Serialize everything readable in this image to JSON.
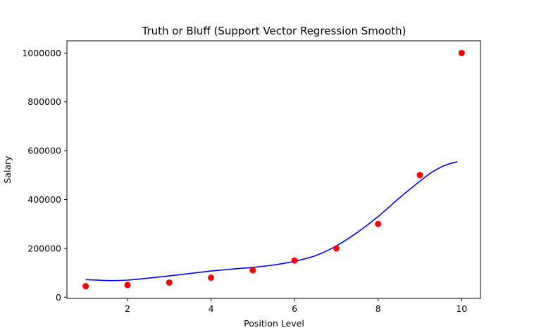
{
  "chart_data": {
    "type": "scatter",
    "title": "Truth or Bluff (Support Vector Regression Smooth)",
    "xlabel": "Position Level",
    "ylabel": "Salary",
    "xlim": [
      0.55,
      10.45
    ],
    "ylim": [
      -5000,
      1050000
    ],
    "xticks": [
      2,
      4,
      6,
      8,
      10
    ],
    "yticks": [
      0,
      200000,
      400000,
      600000,
      800000,
      1000000
    ],
    "grid": false,
    "legend": "none",
    "series": [
      {
        "kind": "scatter",
        "color": "#ff0000",
        "x": [
          1,
          2,
          3,
          4,
          5,
          6,
          7,
          8,
          9,
          10
        ],
        "y": [
          45000,
          50000,
          60000,
          80000,
          110000,
          150000,
          200000,
          300000,
          500000,
          1000000
        ]
      },
      {
        "kind": "line",
        "color": "#0000ff",
        "x": [
          1.0,
          1.6,
          2.0,
          2.5,
          3.0,
          3.5,
          4.0,
          4.5,
          5.0,
          5.5,
          6.0,
          6.5,
          7.0,
          7.5,
          8.0,
          8.5,
          9.0,
          9.3,
          9.6,
          9.9
        ],
        "y": [
          72000,
          68000,
          70000,
          78000,
          87000,
          97000,
          107000,
          115000,
          122000,
          132000,
          147000,
          170000,
          210000,
          265000,
          330000,
          405000,
          475000,
          513000,
          540000,
          555000
        ]
      }
    ]
  }
}
